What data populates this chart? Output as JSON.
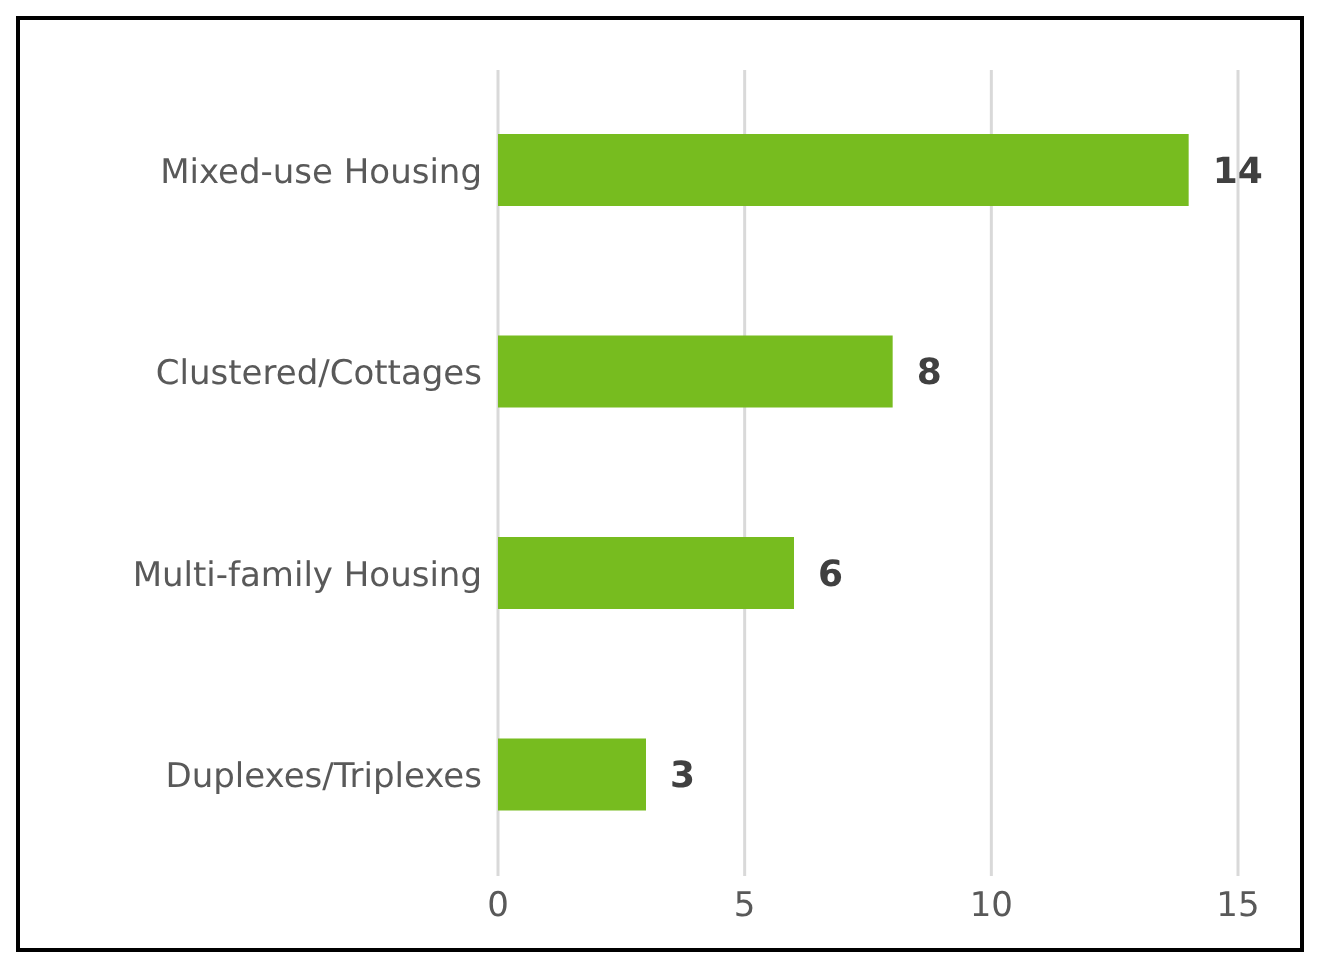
{
  "chart_data": {
    "type": "bar",
    "orientation": "horizontal",
    "categories": [
      "Mixed-use Housing",
      "Clustered/Cottages",
      "Multi-family Housing",
      "Duplexes/Triplexes"
    ],
    "values": [
      14,
      8,
      6,
      3
    ],
    "color": "#77bc1f",
    "xlim": [
      0,
      15
    ],
    "xticks": [
      0,
      5,
      10,
      15
    ],
    "grid": "x",
    "data_labels": true
  }
}
